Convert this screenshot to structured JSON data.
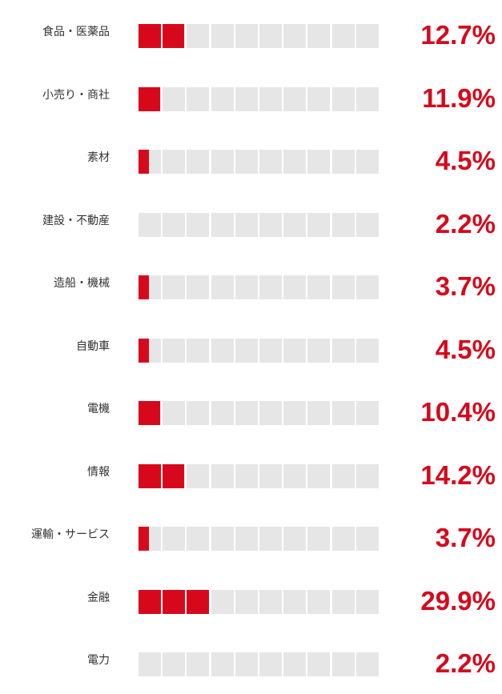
{
  "chart_data": {
    "type": "bar",
    "categories": [
      "食品・医薬品",
      "小売り・商社",
      "素材",
      "建設・不動産",
      "造船・機械",
      "自動車",
      "電機",
      "情報",
      "運輸・サービス",
      "金融",
      "電力"
    ],
    "labels": [
      "12.7%",
      "11.9%",
      "4.5%",
      "2.2%",
      "3.7%",
      "4.5%",
      "10.4%",
      "14.2%",
      "3.7%",
      "29.9%",
      "2.2%"
    ],
    "values": [
      12.7,
      11.9,
      4.5,
      2.2,
      3.7,
      4.5,
      10.4,
      14.2,
      3.7,
      29.9,
      2.2
    ],
    "fill_cells": [
      1.97,
      0.95,
      0.48,
      0,
      0.48,
      0.48,
      0.95,
      1.97,
      0.48,
      2.97,
      0
    ],
    "total_cells": 10,
    "colors": {
      "accent": "#d7081c",
      "empty": "#e6e6e6",
      "label": "#333333"
    }
  }
}
